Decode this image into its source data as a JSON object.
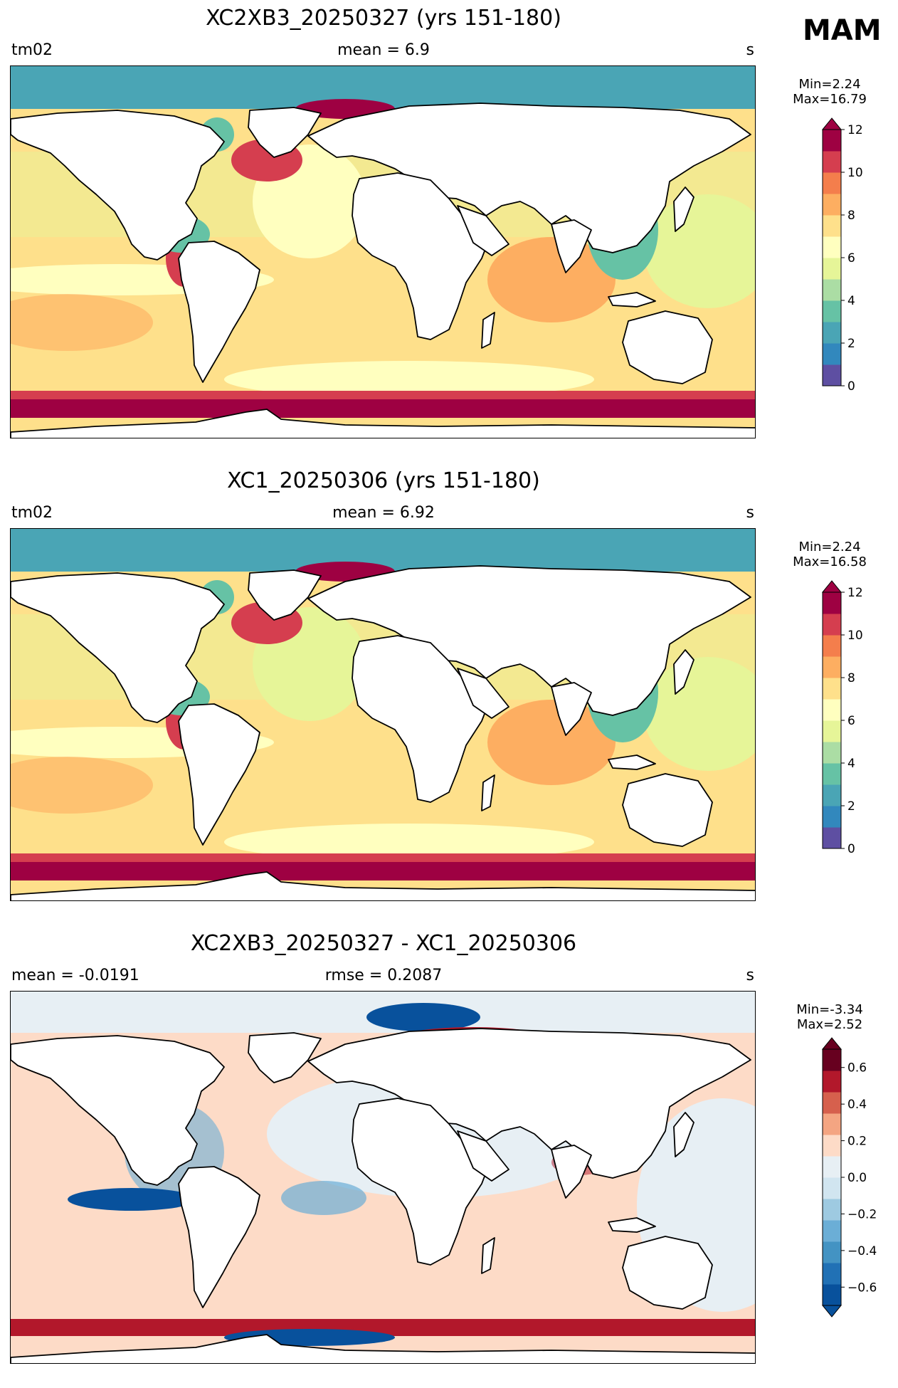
{
  "season": "MAM",
  "panels": [
    {
      "title": "XC2XB3_20250327 (yrs 151-180)",
      "left_label": "tm02",
      "center_label": "mean = 6.9",
      "right_label": "s",
      "min_label": "Min=2.24",
      "max_label": "Max=16.79",
      "colorbar": {
        "ticks": [
          "0",
          "2",
          "4",
          "6",
          "8",
          "10",
          "12"
        ],
        "colors": [
          "#5e4fa2",
          "#3288bd",
          "#4aa5b5",
          "#66c2a5",
          "#abdda4",
          "#e6f598",
          "#ffffbf",
          "#fee08b",
          "#fdae61",
          "#f47e4c",
          "#d53e4f",
          "#9e0142"
        ],
        "extend": "max"
      }
    },
    {
      "title": "XC1_20250306 (yrs 151-180)",
      "left_label": "tm02",
      "center_label": "mean = 6.92",
      "right_label": "s",
      "min_label": "Min=2.24",
      "max_label": "Max=16.58",
      "colorbar": {
        "ticks": [
          "0",
          "2",
          "4",
          "6",
          "8",
          "10",
          "12"
        ],
        "colors": [
          "#5e4fa2",
          "#3288bd",
          "#4aa5b5",
          "#66c2a5",
          "#abdda4",
          "#e6f598",
          "#ffffbf",
          "#fee08b",
          "#fdae61",
          "#f47e4c",
          "#d53e4f",
          "#9e0142"
        ],
        "extend": "max"
      }
    },
    {
      "title": "XC2XB3_20250327 - XC1_20250306",
      "left_label": "mean = -0.0191",
      "center_label": "rmse = 0.2087",
      "right_label": "s",
      "min_label": "Min=-3.34",
      "max_label": "Max=2.52",
      "colorbar": {
        "ticks": [
          "−0.6",
          "−0.4",
          "−0.2",
          "0.0",
          "0.2",
          "0.4",
          "0.6"
        ],
        "colors": [
          "#08519c",
          "#2171b5",
          "#4393c3",
          "#6baed6",
          "#9ecae1",
          "#d1e5f0",
          "#e7eff4",
          "#fddbc7",
          "#f4a582",
          "#d6604d",
          "#b2182b",
          "#67001f"
        ],
        "extend": "both"
      }
    }
  ],
  "map_colors": {
    "ocean_base": "#fee08b",
    "ocean_low": "#ffffbf",
    "ocean_mid": "#e6f598",
    "ocean_high": "#fdae61",
    "arctic": "#4aa5b5",
    "marginal": "#66c2a5",
    "storm": "#9e0142",
    "storm_edge": "#d53e4f",
    "diff_base": "#fddbc7",
    "diff_zero": "#e7eff4",
    "diff_neg": "#6baed6",
    "diff_neg_strong": "#08519c",
    "diff_pos_strong": "#b2182b",
    "land": "#ffffff",
    "coast": "#000000"
  }
}
